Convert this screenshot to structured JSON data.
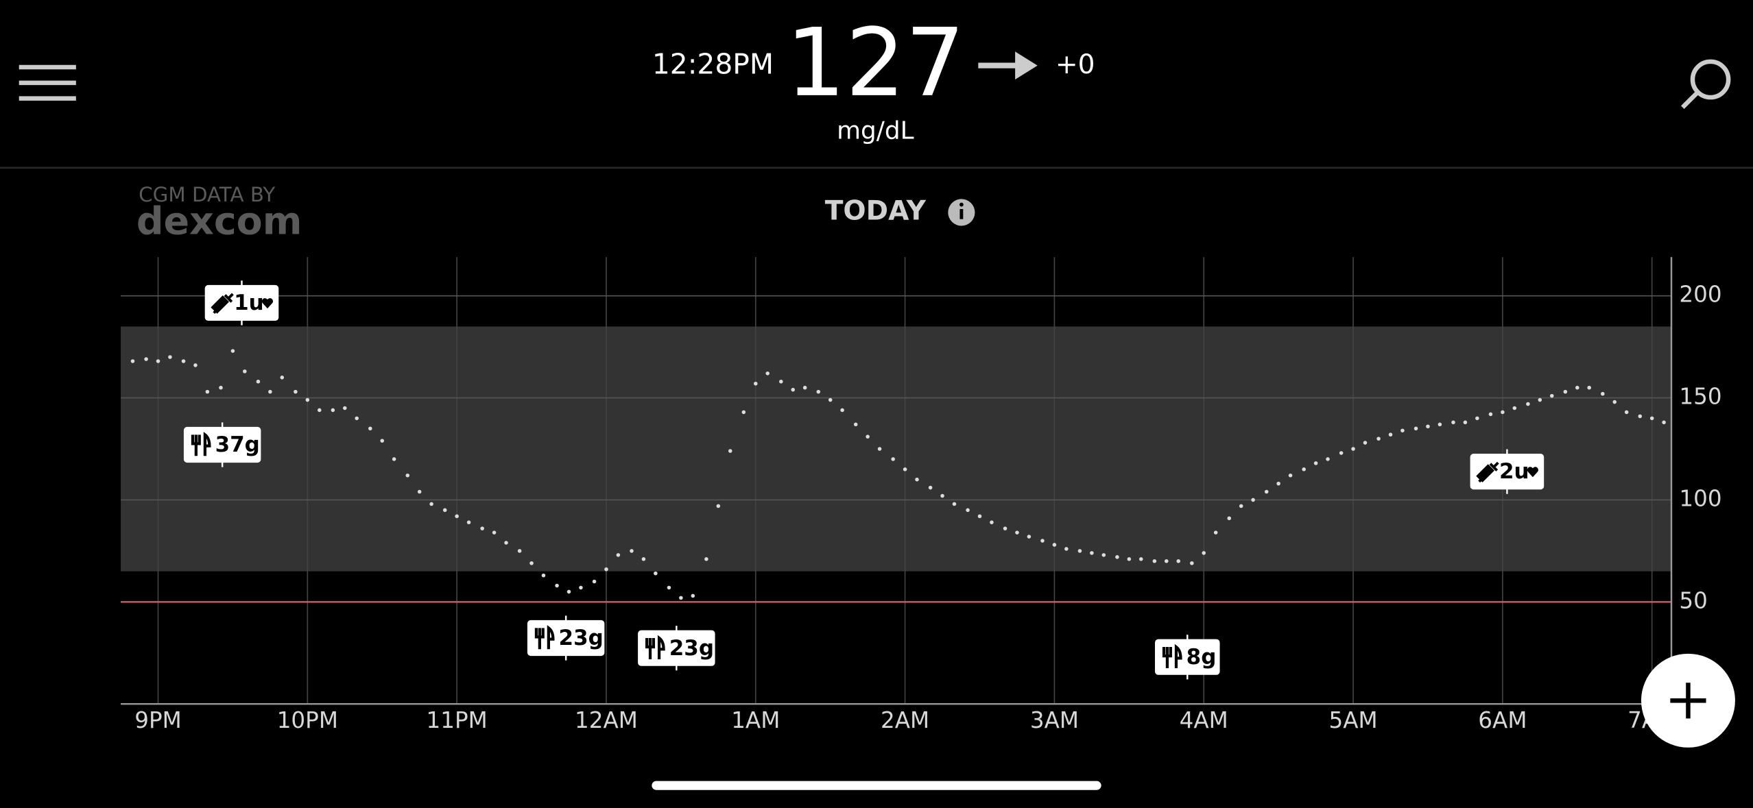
{
  "header": {
    "time": "12:28PM",
    "glucose": "127",
    "trend": "+0",
    "unit": "mg/dL"
  },
  "branding": {
    "line1": "CGM DATA BY",
    "line2": "dexcom"
  },
  "chart_data": {
    "type": "scatter",
    "title": "TODAY",
    "color": "#dddddd",
    "x": [
      20.83,
      20.92,
      21,
      21.08,
      21.17,
      21.25,
      21.33,
      21.42,
      21.5,
      21.58,
      21.67,
      21.75,
      21.83,
      21.92,
      22,
      22.08,
      22.17,
      22.25,
      22.33,
      22.42,
      22.5,
      22.58,
      22.67,
      22.75,
      22.83,
      22.92,
      23,
      23.08,
      23.17,
      23.25,
      23.33,
      23.42,
      23.5,
      23.58,
      23.67,
      23.75,
      23.83,
      23.92,
      24,
      24.08,
      24.17,
      24.25,
      24.33,
      24.42,
      24.5,
      24.58,
      24.67,
      24.75,
      24.83,
      24.92,
      25,
      25.08,
      25.17,
      25.25,
      25.33,
      25.42,
      25.5,
      25.58,
      25.67,
      25.75,
      25.83,
      25.92,
      26,
      26.08,
      26.17,
      26.25,
      26.33,
      26.42,
      26.5,
      26.58,
      26.67,
      26.75,
      26.83,
      26.92,
      27,
      27.08,
      27.17,
      27.25,
      27.33,
      27.42,
      27.5,
      27.58,
      27.67,
      27.75,
      27.83,
      27.92,
      28,
      28.08,
      28.17,
      28.25,
      28.33,
      28.42,
      28.5,
      28.58,
      28.67,
      28.75,
      28.83,
      28.92,
      29,
      29.08,
      29.17,
      29.25,
      29.33,
      29.42,
      29.5,
      29.58,
      29.67,
      29.75,
      29.83,
      29.92,
      30,
      30.08,
      30.17,
      30.25,
      30.33,
      30.42,
      30.5,
      30.58,
      30.67,
      30.75,
      30.83,
      30.92,
      31,
      31.08
    ],
    "values": [
      168,
      169,
      168,
      170,
      168,
      166,
      153,
      155,
      173,
      163,
      158,
      153,
      160,
      153,
      149,
      144,
      144,
      145,
      140,
      135,
      129,
      120,
      112,
      104,
      98,
      95,
      92,
      89,
      86,
      84,
      79,
      75,
      69,
      63,
      58,
      55,
      57,
      60,
      66,
      73,
      75,
      71,
      64,
      57,
      52,
      53,
      71,
      97,
      124,
      143,
      157,
      162,
      158,
      154,
      155,
      153,
      149,
      144,
      137,
      131,
      125,
      120,
      115,
      110,
      106,
      102,
      98,
      95,
      92,
      89,
      86,
      84,
      82,
      80,
      78,
      76,
      75,
      74,
      73,
      72,
      71,
      71,
      70,
      70,
      70,
      69,
      74,
      84,
      91,
      97,
      100,
      104,
      108,
      112,
      115,
      118,
      120,
      123,
      125,
      128,
      130,
      132,
      134,
      135,
      136,
      137,
      138,
      138,
      140,
      142,
      143,
      145,
      147,
      149,
      151,
      153,
      155,
      155,
      152,
      148,
      143,
      141,
      140,
      138
    ],
    "xlim": [
      20.75,
      31.13
    ],
    "ylim": [
      0,
      219
    ],
    "xticks": [
      {
        "value": 21,
        "label": "9PM"
      },
      {
        "value": 22,
        "label": "10PM"
      },
      {
        "value": 23,
        "label": "11PM"
      },
      {
        "value": 24,
        "label": "12AM"
      },
      {
        "value": 25,
        "label": "1AM"
      },
      {
        "value": 26,
        "label": "2AM"
      },
      {
        "value": 27,
        "label": "3AM"
      },
      {
        "value": 28,
        "label": "4AM"
      },
      {
        "value": 29,
        "label": "5AM"
      },
      {
        "value": 30,
        "label": "6AM"
      },
      {
        "value": 31,
        "label": "7AM"
      }
    ],
    "yticks": [
      50,
      100,
      150,
      200
    ],
    "grid": true,
    "target_range": [
      65,
      185
    ],
    "low_threshold": 50,
    "insulin_events": [
      {
        "x": 21.56,
        "label": "1u"
      },
      {
        "x": 30.03,
        "label": "2u"
      }
    ],
    "carb_events": [
      {
        "x": 21.43,
        "label": "37g"
      },
      {
        "x": 23.73,
        "label": "23g"
      },
      {
        "x": 24.47,
        "label": "23g"
      },
      {
        "x": 27.89,
        "label": "8g"
      }
    ]
  }
}
